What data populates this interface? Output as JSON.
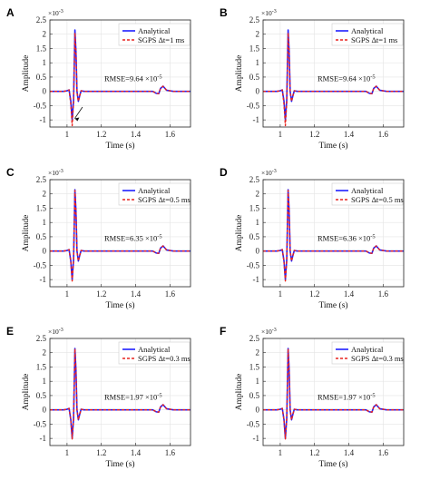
{
  "figure": {
    "background": "#ffffff",
    "colors": {
      "analytical": "#1f1fff",
      "sgps": "#e8231e",
      "grid": "#e4e4e4",
      "axis": "#222222"
    }
  },
  "chart_data": [
    {
      "type": "line",
      "panel": "A",
      "xlabel": "Time (s)",
      "ylabel": "Amplitude",
      "y_multiplier": "×10-3",
      "xlim": [
        0.9,
        1.72
      ],
      "ylim": [
        -1.25,
        2.5
      ],
      "xticks": [
        1,
        1.2,
        1.4,
        1.6
      ],
      "yticks": [
        -1,
        -0.5,
        0,
        0.5,
        1,
        1.5,
        2,
        2.5
      ],
      "grid": true,
      "legend_placement": "top-right",
      "series": [
        {
          "name": "Analytical",
          "x": [
            0.9,
            0.98,
            1.0,
            1.012,
            1.022,
            1.03,
            1.038,
            1.046,
            1.052,
            1.058,
            1.066,
            1.074,
            1.082,
            1.1,
            1.2,
            1.4,
            1.5,
            1.52,
            1.535,
            1.545,
            1.56,
            1.58,
            1.62,
            1.72
          ],
          "y": [
            0,
            0,
            0.02,
            0.05,
            -0.35,
            -1.0,
            -0.3,
            2.15,
            1.4,
            0.0,
            -0.35,
            -0.15,
            0.02,
            0,
            0,
            0,
            0,
            -0.07,
            -0.08,
            0.1,
            0.18,
            0.04,
            0,
            0
          ]
        },
        {
          "name": "SGPS Δt=1 ms",
          "x": [
            0.9,
            0.98,
            1.0,
            1.012,
            1.022,
            1.03,
            1.038,
            1.046,
            1.052,
            1.058,
            1.066,
            1.074,
            1.082,
            1.1,
            1.2,
            1.4,
            1.5,
            1.52,
            1.535,
            1.545,
            1.56,
            1.58,
            1.62,
            1.72
          ],
          "y": [
            0,
            0,
            0.02,
            0.05,
            -0.45,
            -1.2,
            -0.4,
            2.05,
            1.35,
            -0.05,
            -0.35,
            -0.15,
            0.02,
            0,
            0,
            0,
            0,
            -0.07,
            -0.08,
            0.1,
            0.18,
            0.04,
            0,
            0
          ]
        }
      ],
      "annotations": [
        {
          "text": "RMSE=9.64 ×10",
          "exponent": "-5"
        }
      ],
      "arrow": true
    },
    {
      "type": "line",
      "panel": "B",
      "xlabel": "Time (s)",
      "ylabel": "Amplitude",
      "y_multiplier": "×10-3",
      "xlim": [
        0.9,
        1.72
      ],
      "ylim": [
        -1.25,
        2.5
      ],
      "xticks": [
        1,
        1.2,
        1.4,
        1.6
      ],
      "yticks": [
        -1,
        -0.5,
        0,
        0.5,
        1,
        1.5,
        2,
        2.5
      ],
      "grid": true,
      "legend_placement": "top-right",
      "series": [
        {
          "name": "Analytical",
          "x": [
            0.9,
            0.98,
            1.0,
            1.012,
            1.022,
            1.03,
            1.038,
            1.046,
            1.052,
            1.058,
            1.066,
            1.074,
            1.082,
            1.1,
            1.2,
            1.4,
            1.5,
            1.52,
            1.535,
            1.545,
            1.56,
            1.58,
            1.62,
            1.72
          ],
          "y": [
            0,
            0,
            0.02,
            0.05,
            -0.35,
            -1.0,
            -0.3,
            2.15,
            1.4,
            0.0,
            -0.35,
            -0.15,
            0.02,
            0,
            0,
            0,
            0,
            -0.07,
            -0.08,
            0.1,
            0.18,
            0.04,
            0,
            0
          ]
        },
        {
          "name": "SGPS Δt=1 ms",
          "x": [
            0.9,
            0.98,
            1.0,
            1.012,
            1.022,
            1.03,
            1.038,
            1.046,
            1.052,
            1.058,
            1.066,
            1.074,
            1.082,
            1.1,
            1.2,
            1.4,
            1.5,
            1.52,
            1.535,
            1.545,
            1.56,
            1.58,
            1.62,
            1.72
          ],
          "y": [
            0,
            0,
            0.02,
            0.05,
            -0.45,
            -1.2,
            -0.4,
            2.05,
            1.35,
            -0.05,
            -0.35,
            -0.15,
            0.02,
            0,
            0,
            0,
            0,
            -0.07,
            -0.08,
            0.1,
            0.18,
            0.04,
            0,
            0
          ]
        }
      ],
      "annotations": [
        {
          "text": "RMSE=9.64 ×10",
          "exponent": "-5"
        }
      ],
      "arrow": false
    },
    {
      "type": "line",
      "panel": "C",
      "xlabel": "Time (s)",
      "ylabel": "Amplitude",
      "y_multiplier": "×10-3",
      "xlim": [
        0.9,
        1.72
      ],
      "ylim": [
        -1.25,
        2.5
      ],
      "xticks": [
        1,
        1.2,
        1.4,
        1.6
      ],
      "yticks": [
        -1,
        -0.5,
        0,
        0.5,
        1,
        1.5,
        2,
        2.5
      ],
      "grid": true,
      "legend_placement": "top-right",
      "series": [
        {
          "name": "Analytical",
          "x": [
            0.9,
            0.98,
            1.0,
            1.012,
            1.022,
            1.03,
            1.038,
            1.046,
            1.052,
            1.058,
            1.066,
            1.074,
            1.082,
            1.1,
            1.2,
            1.4,
            1.5,
            1.52,
            1.535,
            1.545,
            1.56,
            1.58,
            1.62,
            1.72
          ],
          "y": [
            0,
            0,
            0.02,
            0.05,
            -0.35,
            -1.0,
            -0.3,
            2.15,
            1.4,
            0.0,
            -0.35,
            -0.15,
            0.02,
            0,
            0,
            0,
            0,
            -0.07,
            -0.08,
            0.1,
            0.18,
            0.04,
            0,
            0
          ]
        },
        {
          "name": "SGPS Δt=0.5 ms",
          "x": [
            0.9,
            0.98,
            1.0,
            1.012,
            1.022,
            1.03,
            1.038,
            1.046,
            1.052,
            1.058,
            1.066,
            1.074,
            1.082,
            1.1,
            1.2,
            1.4,
            1.5,
            1.52,
            1.535,
            1.545,
            1.56,
            1.58,
            1.62,
            1.72
          ],
          "y": [
            0,
            0,
            0.02,
            0.05,
            -0.38,
            -1.05,
            -0.33,
            2.12,
            1.38,
            -0.02,
            -0.35,
            -0.15,
            0.02,
            0,
            0,
            0,
            0,
            -0.07,
            -0.08,
            0.1,
            0.18,
            0.04,
            0,
            0
          ]
        }
      ],
      "annotations": [
        {
          "text": "RMSE=6.35 ×10",
          "exponent": "-5"
        }
      ],
      "arrow": false
    },
    {
      "type": "line",
      "panel": "D",
      "xlabel": "Time (s)",
      "ylabel": "Amplitude",
      "y_multiplier": "×10-3",
      "xlim": [
        0.9,
        1.72
      ],
      "ylim": [
        -1.25,
        2.5
      ],
      "xticks": [
        1,
        1.2,
        1.4,
        1.6
      ],
      "yticks": [
        -1,
        -0.5,
        0,
        0.5,
        1,
        1.5,
        2,
        2.5
      ],
      "grid": true,
      "legend_placement": "top-right",
      "series": [
        {
          "name": "Analytical",
          "x": [
            0.9,
            0.98,
            1.0,
            1.012,
            1.022,
            1.03,
            1.038,
            1.046,
            1.052,
            1.058,
            1.066,
            1.074,
            1.082,
            1.1,
            1.2,
            1.4,
            1.5,
            1.52,
            1.535,
            1.545,
            1.56,
            1.58,
            1.62,
            1.72
          ],
          "y": [
            0,
            0,
            0.02,
            0.05,
            -0.35,
            -1.0,
            -0.3,
            2.15,
            1.4,
            0.0,
            -0.35,
            -0.15,
            0.02,
            0,
            0,
            0,
            0,
            -0.07,
            -0.08,
            0.1,
            0.18,
            0.04,
            0,
            0
          ]
        },
        {
          "name": "SGPS Δt=0.5 ms",
          "x": [
            0.9,
            0.98,
            1.0,
            1.012,
            1.022,
            1.03,
            1.038,
            1.046,
            1.052,
            1.058,
            1.066,
            1.074,
            1.082,
            1.1,
            1.2,
            1.4,
            1.5,
            1.52,
            1.535,
            1.545,
            1.56,
            1.58,
            1.62,
            1.72
          ],
          "y": [
            0,
            0,
            0.02,
            0.05,
            -0.38,
            -1.05,
            -0.33,
            2.12,
            1.38,
            -0.02,
            -0.35,
            -0.15,
            0.02,
            0,
            0,
            0,
            0,
            -0.07,
            -0.08,
            0.1,
            0.18,
            0.04,
            0,
            0
          ]
        }
      ],
      "annotations": [
        {
          "text": "RMSE=6.36 ×10",
          "exponent": "-5"
        }
      ],
      "arrow": false
    },
    {
      "type": "line",
      "panel": "E",
      "xlabel": "Time (s)",
      "ylabel": "Amplitude",
      "y_multiplier": "×10-3",
      "xlim": [
        0.9,
        1.72
      ],
      "ylim": [
        -1.25,
        2.5
      ],
      "xticks": [
        1,
        1.2,
        1.4,
        1.6
      ],
      "yticks": [
        -1,
        -0.5,
        0,
        0.5,
        1,
        1.5,
        2,
        2.5
      ],
      "grid": true,
      "legend_placement": "top-right",
      "series": [
        {
          "name": "Analytical",
          "x": [
            0.9,
            0.98,
            1.0,
            1.012,
            1.022,
            1.03,
            1.038,
            1.046,
            1.052,
            1.058,
            1.066,
            1.074,
            1.082,
            1.1,
            1.2,
            1.4,
            1.5,
            1.52,
            1.535,
            1.545,
            1.56,
            1.58,
            1.62,
            1.72
          ],
          "y": [
            0,
            0,
            0.02,
            0.05,
            -0.35,
            -1.0,
            -0.3,
            2.15,
            1.4,
            0.0,
            -0.35,
            -0.15,
            0.02,
            0,
            0,
            0,
            0,
            -0.07,
            -0.08,
            0.1,
            0.18,
            0.04,
            0,
            0
          ]
        },
        {
          "name": "SGPS Δt=0.3 ms",
          "x": [
            0.9,
            0.98,
            1.0,
            1.012,
            1.022,
            1.03,
            1.038,
            1.046,
            1.052,
            1.058,
            1.066,
            1.074,
            1.082,
            1.1,
            1.2,
            1.4,
            1.5,
            1.52,
            1.535,
            1.545,
            1.56,
            1.58,
            1.62,
            1.72
          ],
          "y": [
            0,
            0,
            0.02,
            0.05,
            -0.36,
            -1.02,
            -0.31,
            2.14,
            1.39,
            -0.01,
            -0.35,
            -0.15,
            0.02,
            0,
            0,
            0,
            0,
            -0.07,
            -0.08,
            0.1,
            0.18,
            0.04,
            0,
            0
          ]
        }
      ],
      "annotations": [
        {
          "text": "RMSE=1.97 ×10",
          "exponent": "-5"
        }
      ],
      "arrow": false
    },
    {
      "type": "line",
      "panel": "F",
      "xlabel": "Time (s)",
      "ylabel": "Amplitude",
      "y_multiplier": "×10-3",
      "xlim": [
        0.9,
        1.72
      ],
      "ylim": [
        -1.25,
        2.5
      ],
      "xticks": [
        1,
        1.2,
        1.4,
        1.6
      ],
      "yticks": [
        -1,
        -0.5,
        0,
        0.5,
        1,
        1.5,
        2,
        2.5
      ],
      "grid": true,
      "legend_placement": "top-right",
      "series": [
        {
          "name": "Analytical",
          "x": [
            0.9,
            0.98,
            1.0,
            1.012,
            1.022,
            1.03,
            1.038,
            1.046,
            1.052,
            1.058,
            1.066,
            1.074,
            1.082,
            1.1,
            1.2,
            1.4,
            1.5,
            1.52,
            1.535,
            1.545,
            1.56,
            1.58,
            1.62,
            1.72
          ],
          "y": [
            0,
            0,
            0.02,
            0.05,
            -0.35,
            -1.0,
            -0.3,
            2.15,
            1.4,
            0.0,
            -0.35,
            -0.15,
            0.02,
            0,
            0,
            0,
            0,
            -0.07,
            -0.08,
            0.1,
            0.18,
            0.04,
            0,
            0
          ]
        },
        {
          "name": "SGPS Δt=0.3 ms",
          "x": [
            0.9,
            0.98,
            1.0,
            1.012,
            1.022,
            1.03,
            1.038,
            1.046,
            1.052,
            1.058,
            1.066,
            1.074,
            1.082,
            1.1,
            1.2,
            1.4,
            1.5,
            1.52,
            1.535,
            1.545,
            1.56,
            1.58,
            1.62,
            1.72
          ],
          "y": [
            0,
            0,
            0.02,
            0.05,
            -0.36,
            -1.02,
            -0.31,
            2.14,
            1.39,
            -0.01,
            -0.35,
            -0.15,
            0.02,
            0,
            0,
            0,
            0,
            -0.07,
            -0.08,
            0.1,
            0.18,
            0.04,
            0,
            0
          ]
        }
      ],
      "annotations": [
        {
          "text": "RMSE=1.97 ×10",
          "exponent": "-5"
        }
      ],
      "arrow": false
    }
  ]
}
